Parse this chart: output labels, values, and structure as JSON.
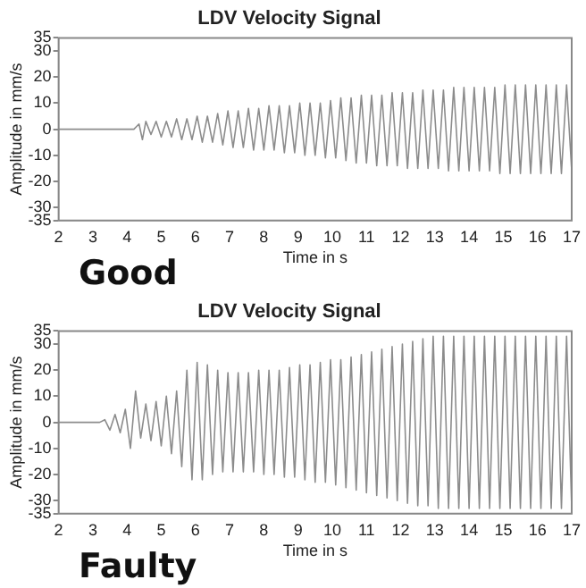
{
  "chart_data": [
    {
      "type": "line",
      "title": "LDV Velocity Signal",
      "xlabel": "Time in s",
      "ylabel": "Amplitude in mm/s",
      "annotations": [
        "Good"
      ],
      "color": "#8c8c8c",
      "x": [
        2,
        4.2,
        4.35,
        4.45,
        4.55,
        4.7,
        4.85,
        5.0,
        5.15,
        5.3,
        5.45,
        5.6,
        5.75,
        5.9,
        6.05,
        6.2,
        6.35,
        6.5,
        6.65,
        6.8,
        6.95,
        7.1,
        7.25,
        7.4,
        7.55,
        7.7,
        7.85,
        8.0,
        8.15,
        8.3,
        8.45,
        8.6,
        8.75,
        8.9,
        9.05,
        9.2,
        9.35,
        9.5,
        9.65,
        9.8,
        9.95,
        10.1,
        10.25,
        10.4,
        10.55,
        10.7,
        10.85,
        11.0,
        11.15,
        11.3,
        11.45,
        11.6,
        11.75,
        11.9,
        12.05,
        12.2,
        12.35,
        12.5,
        12.65,
        12.8,
        12.95,
        13.1,
        13.25,
        13.4,
        13.55,
        13.7,
        13.85,
        14.0,
        14.15,
        14.3,
        14.45,
        14.6,
        14.75,
        14.9,
        15.05,
        15.2,
        15.35,
        15.5,
        15.65,
        15.8,
        15.95,
        16.1,
        16.25,
        16.4,
        16.55,
        16.7,
        16.85,
        17.0
      ],
      "values": [
        0,
        0,
        2,
        -4,
        3,
        -2,
        3,
        -3,
        3,
        -3,
        4,
        -4,
        4,
        -4,
        5,
        -5,
        5,
        -5,
        6,
        -6,
        7,
        -7,
        7,
        -7,
        8,
        -8,
        8,
        -8,
        9,
        -8,
        9,
        -9,
        9,
        -9,
        10,
        -10,
        10,
        -10,
        10,
        -11,
        11,
        -11,
        12,
        -12,
        12,
        -13,
        13,
        -13,
        13,
        -14,
        13,
        -14,
        14,
        -14,
        14,
        -15,
        14,
        -15,
        15,
        -15,
        15,
        -15,
        15,
        -16,
        16,
        -16,
        16,
        -16,
        16,
        -16,
        16,
        -16,
        16,
        -17,
        17,
        -17,
        17,
        -17,
        17,
        -17,
        17,
        -17,
        17,
        -17,
        17,
        -17,
        17,
        -16
      ],
      "xlim": [
        2,
        17
      ],
      "xticks": [
        2,
        3,
        4,
        5,
        6,
        7,
        8,
        9,
        10,
        11,
        12,
        13,
        14,
        15,
        16,
        17
      ],
      "ylim": [
        -35,
        35
      ],
      "yticks": [
        -35,
        -30,
        -20,
        -10,
        0,
        10,
        20,
        30,
        35
      ]
    },
    {
      "type": "line",
      "title": "LDV Velocity Signal",
      "xlabel": "Time in s",
      "ylabel": "Amplitude in mm/s",
      "annotations": [
        "Faulty"
      ],
      "color": "#8c8c8c",
      "x": [
        2,
        3.2,
        3.35,
        3.5,
        3.65,
        3.8,
        3.95,
        4.1,
        4.25,
        4.4,
        4.55,
        4.7,
        4.85,
        5.0,
        5.15,
        5.3,
        5.45,
        5.6,
        5.75,
        5.9,
        6.05,
        6.2,
        6.35,
        6.5,
        6.65,
        6.8,
        6.95,
        7.1,
        7.25,
        7.4,
        7.55,
        7.7,
        7.85,
        8.0,
        8.15,
        8.3,
        8.45,
        8.6,
        8.75,
        8.9,
        9.05,
        9.2,
        9.35,
        9.5,
        9.65,
        9.8,
        9.95,
        10.1,
        10.25,
        10.4,
        10.55,
        10.7,
        10.85,
        11.0,
        11.15,
        11.3,
        11.45,
        11.6,
        11.75,
        11.9,
        12.05,
        12.2,
        12.35,
        12.5,
        12.65,
        12.8,
        12.95,
        13.1,
        13.25,
        13.4,
        13.55,
        13.7,
        13.85,
        14.0,
        14.15,
        14.3,
        14.45,
        14.6,
        14.75,
        14.9,
        15.05,
        15.2,
        15.35,
        15.5,
        15.65,
        15.8,
        15.95,
        16.1,
        16.25,
        16.4,
        16.55,
        16.7,
        16.85,
        17.0
      ],
      "values": [
        0,
        0,
        1,
        -3,
        3,
        -4,
        5,
        -10,
        12,
        -6,
        7,
        -7,
        8,
        -9,
        10,
        -12,
        12,
        -17,
        20,
        -22,
        23,
        -22,
        22,
        -20,
        20,
        -19,
        19,
        -19,
        19,
        -19,
        19,
        -19,
        20,
        -20,
        20,
        -20,
        20,
        -21,
        21,
        -21,
        22,
        -22,
        22,
        -23,
        23,
        -23,
        24,
        -24,
        24,
        -25,
        25,
        -26,
        26,
        -27,
        27,
        -28,
        28,
        -29,
        29,
        -30,
        30,
        -31,
        31,
        -32,
        32,
        -32,
        33,
        -33,
        33,
        -33,
        33,
        -33,
        33,
        -33,
        33,
        -33,
        33,
        -33,
        33,
        -33,
        33,
        -33,
        33,
        -33,
        33,
        -33,
        33,
        -33,
        33,
        -33,
        33,
        -33,
        33,
        -33
      ],
      "xlim": [
        2,
        17
      ],
      "xticks": [
        2,
        3,
        4,
        5,
        6,
        7,
        8,
        9,
        10,
        11,
        12,
        13,
        14,
        15,
        16,
        17
      ],
      "ylim": [
        -35,
        35
      ],
      "yticks": [
        -35,
        -30,
        -20,
        -10,
        0,
        10,
        20,
        30,
        35
      ]
    }
  ]
}
